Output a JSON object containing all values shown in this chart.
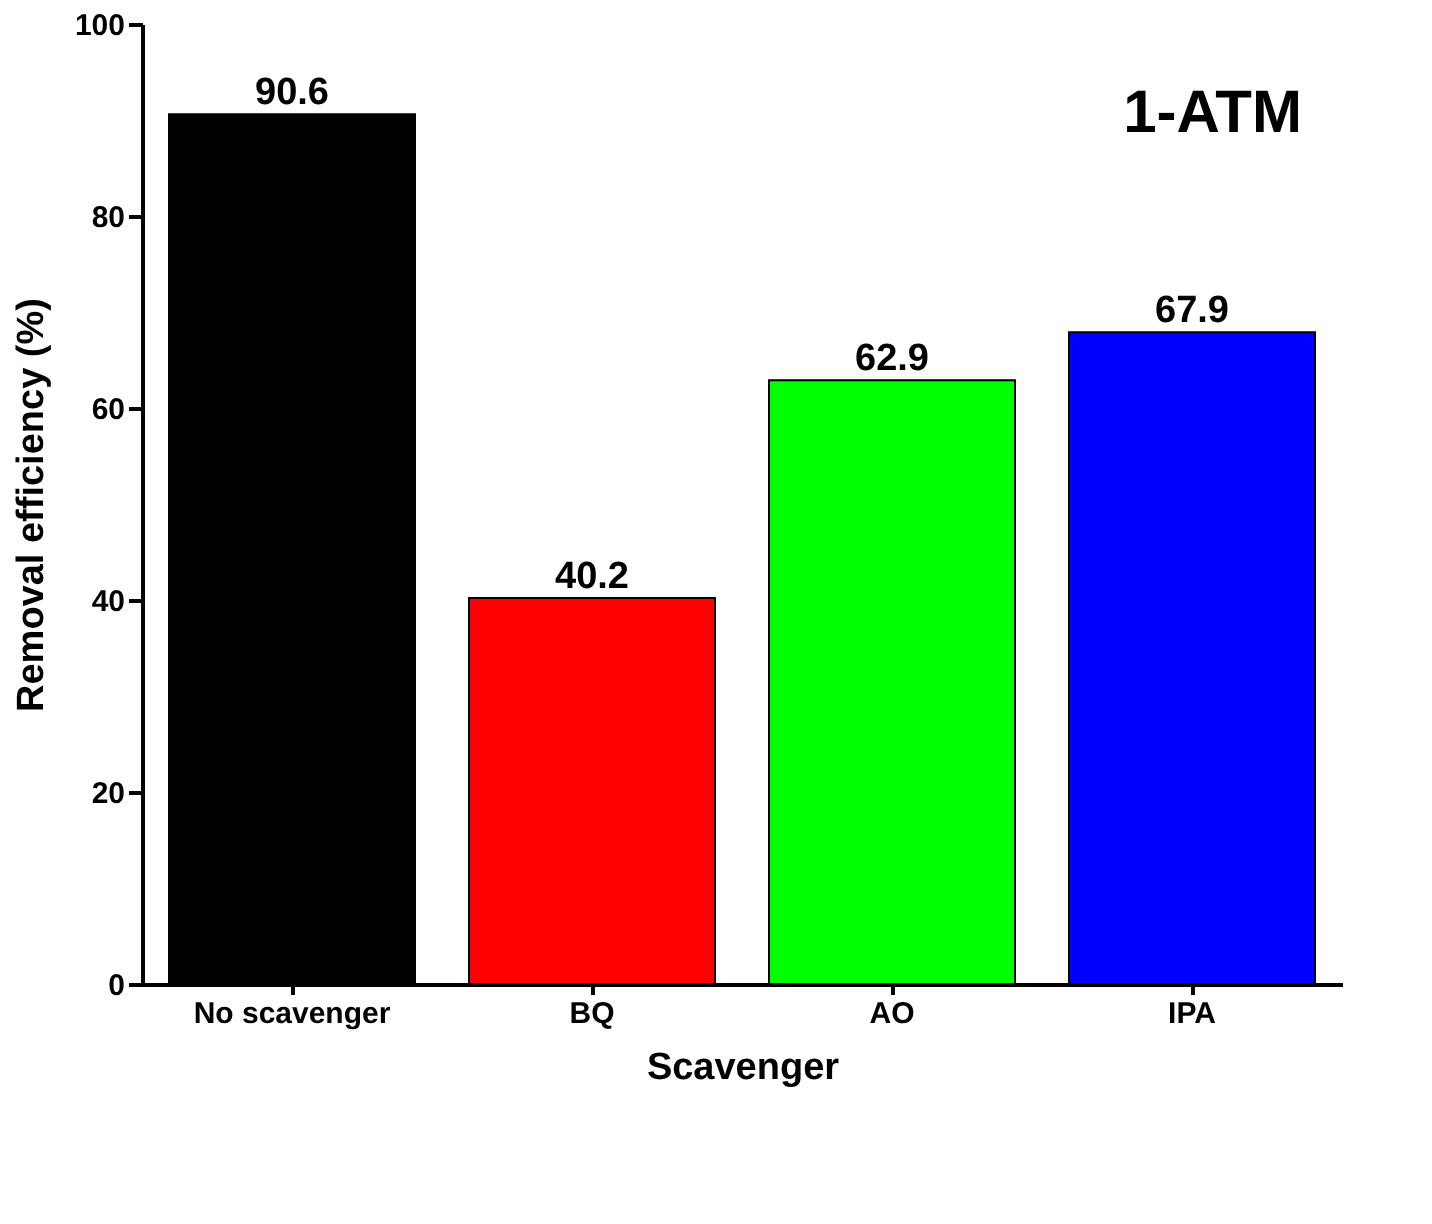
{
  "chart_data": {
    "type": "bar",
    "xlabel": "Scavenger",
    "ylabel": "Removal efficiency (%)",
    "categories": [
      "No scavenger",
      "BQ",
      "AO",
      "IPA"
    ],
    "values": [
      90.6,
      40.2,
      62.9,
      67.9
    ],
    "colors": [
      "#000000",
      "#ff0000",
      "#00ff00",
      "#0000ff"
    ],
    "ylim": [
      0,
      100
    ],
    "yticks": [
      0,
      20,
      40,
      60,
      80,
      100
    ],
    "data_labels": true,
    "grid": false,
    "annotations": [
      "1-ATM"
    ]
  }
}
